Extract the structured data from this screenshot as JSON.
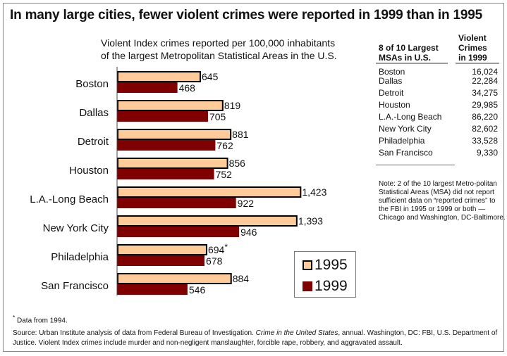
{
  "title": "In many large cities, fewer violent crimes were reported in 1999 than in 1995",
  "chart_data": {
    "type": "bar",
    "orientation": "horizontal",
    "title": "In many large cities, fewer violent crimes were reported in 1999 than in 1995",
    "subtitle_line1": "Violent Index crimes reported per 100,000 inhabitants",
    "subtitle_line2": "of the largest Metropolitan Statistical Areas in the U.S.",
    "xlabel": "",
    "ylabel": "",
    "xlim": [
      0,
      1500
    ],
    "grid": false,
    "legend_position": "bottom-right",
    "categories": [
      "Boston",
      "Dallas",
      "Detroit",
      "Houston",
      "L.A.-Long Beach",
      "New York City",
      "Philadelphia",
      "San Francisco"
    ],
    "series": [
      {
        "name": "1995",
        "color": "#FFCC99",
        "values": [
          645,
          819,
          881,
          856,
          1423,
          1393,
          694,
          884
        ],
        "labels": [
          "645",
          "819",
          "881",
          "856",
          "1,423",
          "1,393",
          "694*",
          "884"
        ]
      },
      {
        "name": "1999",
        "color": "#800000",
        "values": [
          468,
          705,
          762,
          752,
          922,
          946,
          678,
          546
        ],
        "labels": [
          "468",
          "705",
          "762",
          "752",
          "922",
          "946",
          "678",
          "546"
        ]
      }
    ]
  },
  "legend": [
    {
      "label": "1995",
      "color": "#FFCC99"
    },
    {
      "label": "1999",
      "color": "#800000"
    }
  ],
  "table": {
    "header_city_line1": "8 of 10 Largest",
    "header_city_line2": "MSAs in U.S.",
    "header_val_line1": "Violent",
    "header_val_line2": "Crimes",
    "header_val_line3": "in 1999",
    "rows": [
      {
        "city": "Boston",
        "value": "16,024"
      },
      {
        "city": "Dallas",
        "value": "22,284"
      },
      {
        "city": "Detroit",
        "value": "34,275"
      },
      {
        "city": "Houston",
        "value": "29,985"
      },
      {
        "city": "L.A.-Long Beach",
        "value": "86,220"
      },
      {
        "city": "New York City",
        "value": "82,602"
      },
      {
        "city": "Philadelphia",
        "value": "33,528"
      },
      {
        "city": "San Francisco",
        "value": "9,330"
      }
    ]
  },
  "note": "Note: 2 of the 10 largest Metro-politan Statistical Areas (MSA) did not report sufficient data on “reported crimes” to the FBI in 1995 or 1999 or both — Chicago and Washington, DC-Baltimore.",
  "footnote": {
    "marker": "*",
    "text": " Data from 1994."
  },
  "source": {
    "part1": "Source: Urban Institute analysis of data from Federal Bureau of Investigation. ",
    "italic": "Crime in the United States",
    "part2": ", annual. Washington, DC: FBI, U.S. Department of Justice.  Violent Index crimes include murder and non-negligent manslaughter, forcible rape, robbery, and aggravated assault."
  }
}
